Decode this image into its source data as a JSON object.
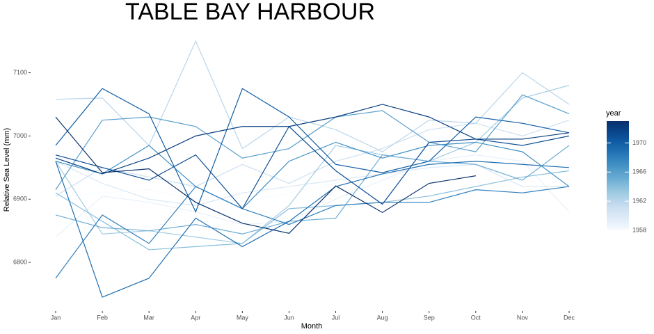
{
  "chart_data": {
    "type": "line",
    "title": "TABLE BAY HARBOUR",
    "x_label": "Month",
    "y_label": "Relative Sea Level (mm)",
    "categories": [
      "Jan",
      "Feb",
      "Mar",
      "Apr",
      "May",
      "Jun",
      "Jul",
      "Aug",
      "Sep",
      "Oct",
      "Nov",
      "Dec"
    ],
    "ylim": [
      6722,
      7171
    ],
    "yticks": [
      6800,
      6900,
      7000,
      7100
    ],
    "legend": {
      "title": "year",
      "lim": [
        1958,
        1973
      ],
      "ticks": [
        1958,
        1962,
        1966,
        1970
      ]
    },
    "series": [
      {
        "color": "#f7fbff",
        "values": [
          6905,
          6910,
          6915,
          6900,
          6895,
          6910,
          6925,
          6950,
          6980,
          6990,
          6985,
          6990
        ]
      },
      {
        "color": "#e8f1fa",
        "values": [
          6840,
          6905,
          6895,
          6880,
          6860,
          6865,
          6900,
          6930,
          6960,
          6970,
          6960,
          6880
        ]
      },
      {
        "color": "#dae8f6",
        "values": [
          6960,
          6925,
          6900,
          6890,
          6910,
          6920,
          6930,
          6940,
          6950,
          6955,
          6920,
          6920
        ]
      },
      {
        "color": "#cde0f1",
        "values": [
          6905,
          6950,
          6935,
          6920,
          6955,
          6925,
          6960,
          6980,
          7010,
          7020,
          7000,
          7025
        ]
      },
      {
        "color": "#bad6eb",
        "values": [
          7058,
          7060,
          6985,
          7150,
          6980,
          7030,
          7010,
          6975,
          7025,
          7020,
          7100,
          7050
        ]
      },
      {
        "color": "#a3cce3",
        "values": [
          6960,
          6845,
          6850,
          6840,
          6830,
          6890,
          6985,
          6970,
          6960,
          6990,
          7060,
          7080
        ]
      },
      {
        "color": "#88bedc",
        "values": [
          6910,
          6865,
          6820,
          6825,
          6830,
          6885,
          6890,
          6895,
          6905,
          6920,
          6935,
          6945
        ]
      },
      {
        "color": "#6daed5",
        "values": [
          6875,
          6855,
          6850,
          6860,
          6845,
          6865,
          6870,
          6970,
          6960,
          6955,
          6930,
          6985
        ]
      },
      {
        "color": "#579fcb",
        "values": [
          6915,
          7025,
          7030,
          7015,
          6965,
          6980,
          7030,
          7040,
          6990,
          6975,
          7065,
          7035
        ]
      },
      {
        "color": "#4190c3",
        "values": [
          6960,
          6940,
          6985,
          6920,
          6885,
          6960,
          6990,
          6965,
          6985,
          6990,
          6975,
          6920
        ]
      },
      {
        "color": "#2f7fbc",
        "values": [
          6775,
          6875,
          6830,
          6920,
          6885,
          6860,
          6890,
          6895,
          6895,
          6915,
          6910,
          6920
        ]
      },
      {
        "color": "#1f6eb2",
        "values": [
          6960,
          6745,
          6775,
          6870,
          6825,
          6865,
          6920,
          6940,
          6955,
          6960,
          6955,
          6950
        ]
      },
      {
        "color": "#125ea6",
        "values": [
          6985,
          7075,
          7035,
          6880,
          7075,
          7030,
          6955,
          6942,
          6960,
          7030,
          7020,
          7005
        ]
      },
      {
        "color": "#0b4d94",
        "values": [
          6970,
          6950,
          6930,
          6970,
          6885,
          7015,
          6945,
          6892,
          6990,
          6995,
          6985,
          7000
        ]
      },
      {
        "color": "#083e80",
        "values": [
          6965,
          6940,
          6965,
          7000,
          7015,
          7015,
          7030,
          7050,
          7030,
          6995,
          6995,
          7005
        ]
      },
      {
        "color": "#08306b",
        "values": [
          7030,
          6942,
          6948,
          6895,
          6862,
          6846,
          6921,
          6879,
          6925,
          6937,
          null,
          null
        ]
      }
    ]
  }
}
